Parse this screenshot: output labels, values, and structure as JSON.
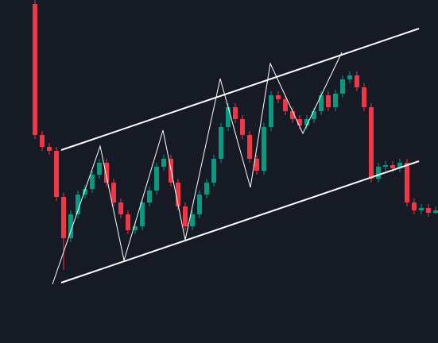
{
  "chart_data": {
    "type": "candlestick",
    "up_color": "#089981",
    "down_color": "#f23645",
    "background": "#161a25",
    "ylim": [
      0,
      432
    ],
    "open": [
      427,
      262,
      247,
      242,
      184,
      132,
      162,
      187,
      194,
      212,
      227,
      202,
      177,
      162,
      142,
      147,
      177,
      192,
      222,
      232,
      202,
      172,
      147,
      162,
      187,
      202,
      232,
      272,
      297,
      282,
      262,
      232,
      217,
      272,
      312,
      307,
      292,
      282,
      274,
      282,
      292,
      312,
      297,
      314,
      332,
      337,
      322,
      297,
      207,
      222,
      224,
      220,
      227,
      177,
      167,
      170,
      164
    ],
    "high": [
      432,
      267,
      252,
      247,
      189,
      167,
      192,
      199,
      217,
      232,
      232,
      207,
      182,
      167,
      152,
      182,
      197,
      227,
      237,
      237,
      207,
      177,
      167,
      192,
      207,
      237,
      277,
      302,
      302,
      287,
      267,
      237,
      277,
      317,
      317,
      312,
      297,
      287,
      287,
      297,
      317,
      317,
      319,
      337,
      342,
      342,
      327,
      302,
      227,
      229,
      229,
      232,
      232,
      182,
      175,
      175,
      172
    ],
    "low": [
      257,
      242,
      237,
      179,
      92,
      127,
      157,
      182,
      189,
      207,
      197,
      172,
      157,
      137,
      137,
      142,
      172,
      187,
      217,
      197,
      167,
      142,
      142,
      157,
      182,
      197,
      227,
      267,
      277,
      257,
      227,
      212,
      212,
      267,
      302,
      287,
      277,
      269,
      269,
      277,
      287,
      292,
      292,
      309,
      327,
      317,
      292,
      202,
      202,
      217,
      215,
      215,
      172,
      162,
      162,
      159,
      162
    ],
    "close": [
      262,
      247,
      242,
      184,
      132,
      162,
      187,
      194,
      212,
      227,
      202,
      177,
      162,
      142,
      147,
      177,
      192,
      222,
      232,
      202,
      172,
      147,
      162,
      187,
      202,
      232,
      272,
      297,
      282,
      262,
      232,
      217,
      272,
      312,
      307,
      292,
      282,
      274,
      282,
      292,
      312,
      297,
      314,
      332,
      337,
      322,
      297,
      207,
      222,
      224,
      220,
      227,
      177,
      167,
      170,
      164,
      167
    ]
  }
}
